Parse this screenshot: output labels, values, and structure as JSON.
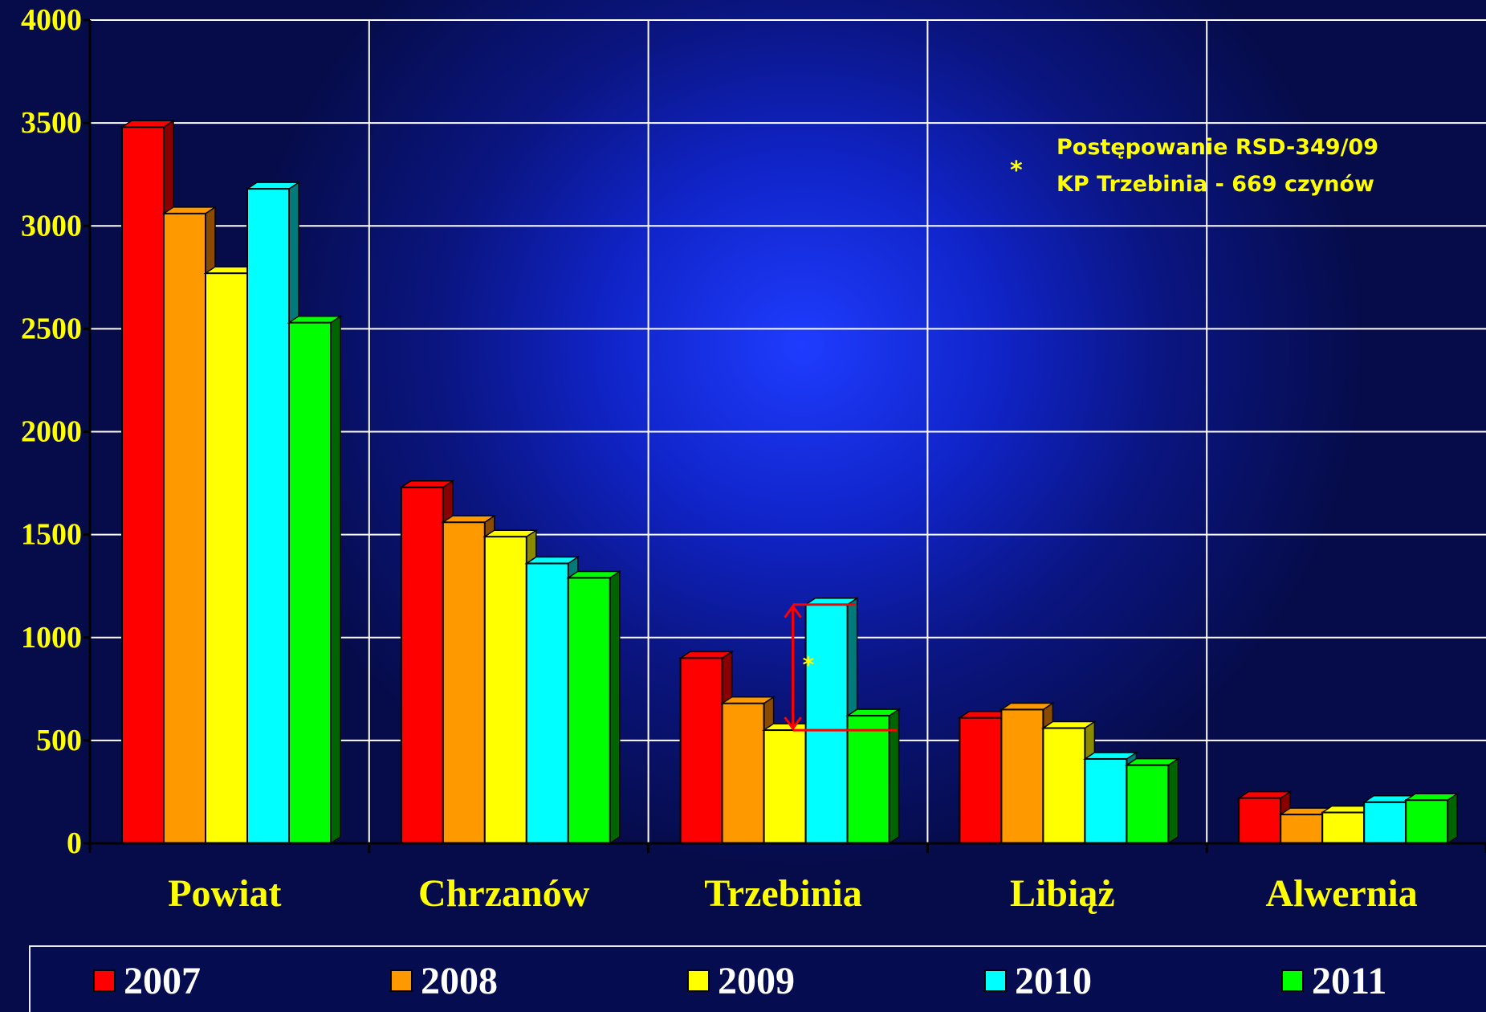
{
  "chart_data": {
    "type": "bar",
    "categories": [
      "Powiat",
      "Chrzanów",
      "Trzebinia",
      "Libiąż",
      "Alwernia"
    ],
    "series": [
      {
        "name": "2007",
        "color": "#ff0000",
        "side": "#8a0000",
        "values": [
          3480,
          1730,
          900,
          610,
          220
        ]
      },
      {
        "name": "2008",
        "color": "#ff9900",
        "side": "#8a4a00",
        "values": [
          3060,
          1560,
          680,
          650,
          140
        ]
      },
      {
        "name": "2009",
        "color": "#ffff00",
        "side": "#8a8a00",
        "values": [
          2770,
          1490,
          550,
          560,
          150
        ]
      },
      {
        "name": "2010",
        "color": "#00ffff",
        "side": "#007a7a",
        "values": [
          3180,
          1360,
          1160,
          410,
          200
        ]
      },
      {
        "name": "2011",
        "color": "#00ff00",
        "side": "#006400",
        "values": [
          2530,
          1290,
          620,
          380,
          210
        ]
      }
    ],
    "ylim": [
      0,
      4000
    ],
    "yticks": [
      "0",
      "500",
      "1000",
      "1500",
      "2000",
      "2500",
      "3000",
      "3500",
      "4000"
    ],
    "grid": true,
    "legend_position": "bottom",
    "annotation": {
      "marker": "*",
      "lines": [
        "Postępowanie RSD-349/09",
        "KP Trzebinia - 669 czynów"
      ],
      "bracket_marker": "*",
      "bracket_category": "Trzebinia",
      "bracket_from": 550,
      "bracket_to": 1160
    }
  }
}
